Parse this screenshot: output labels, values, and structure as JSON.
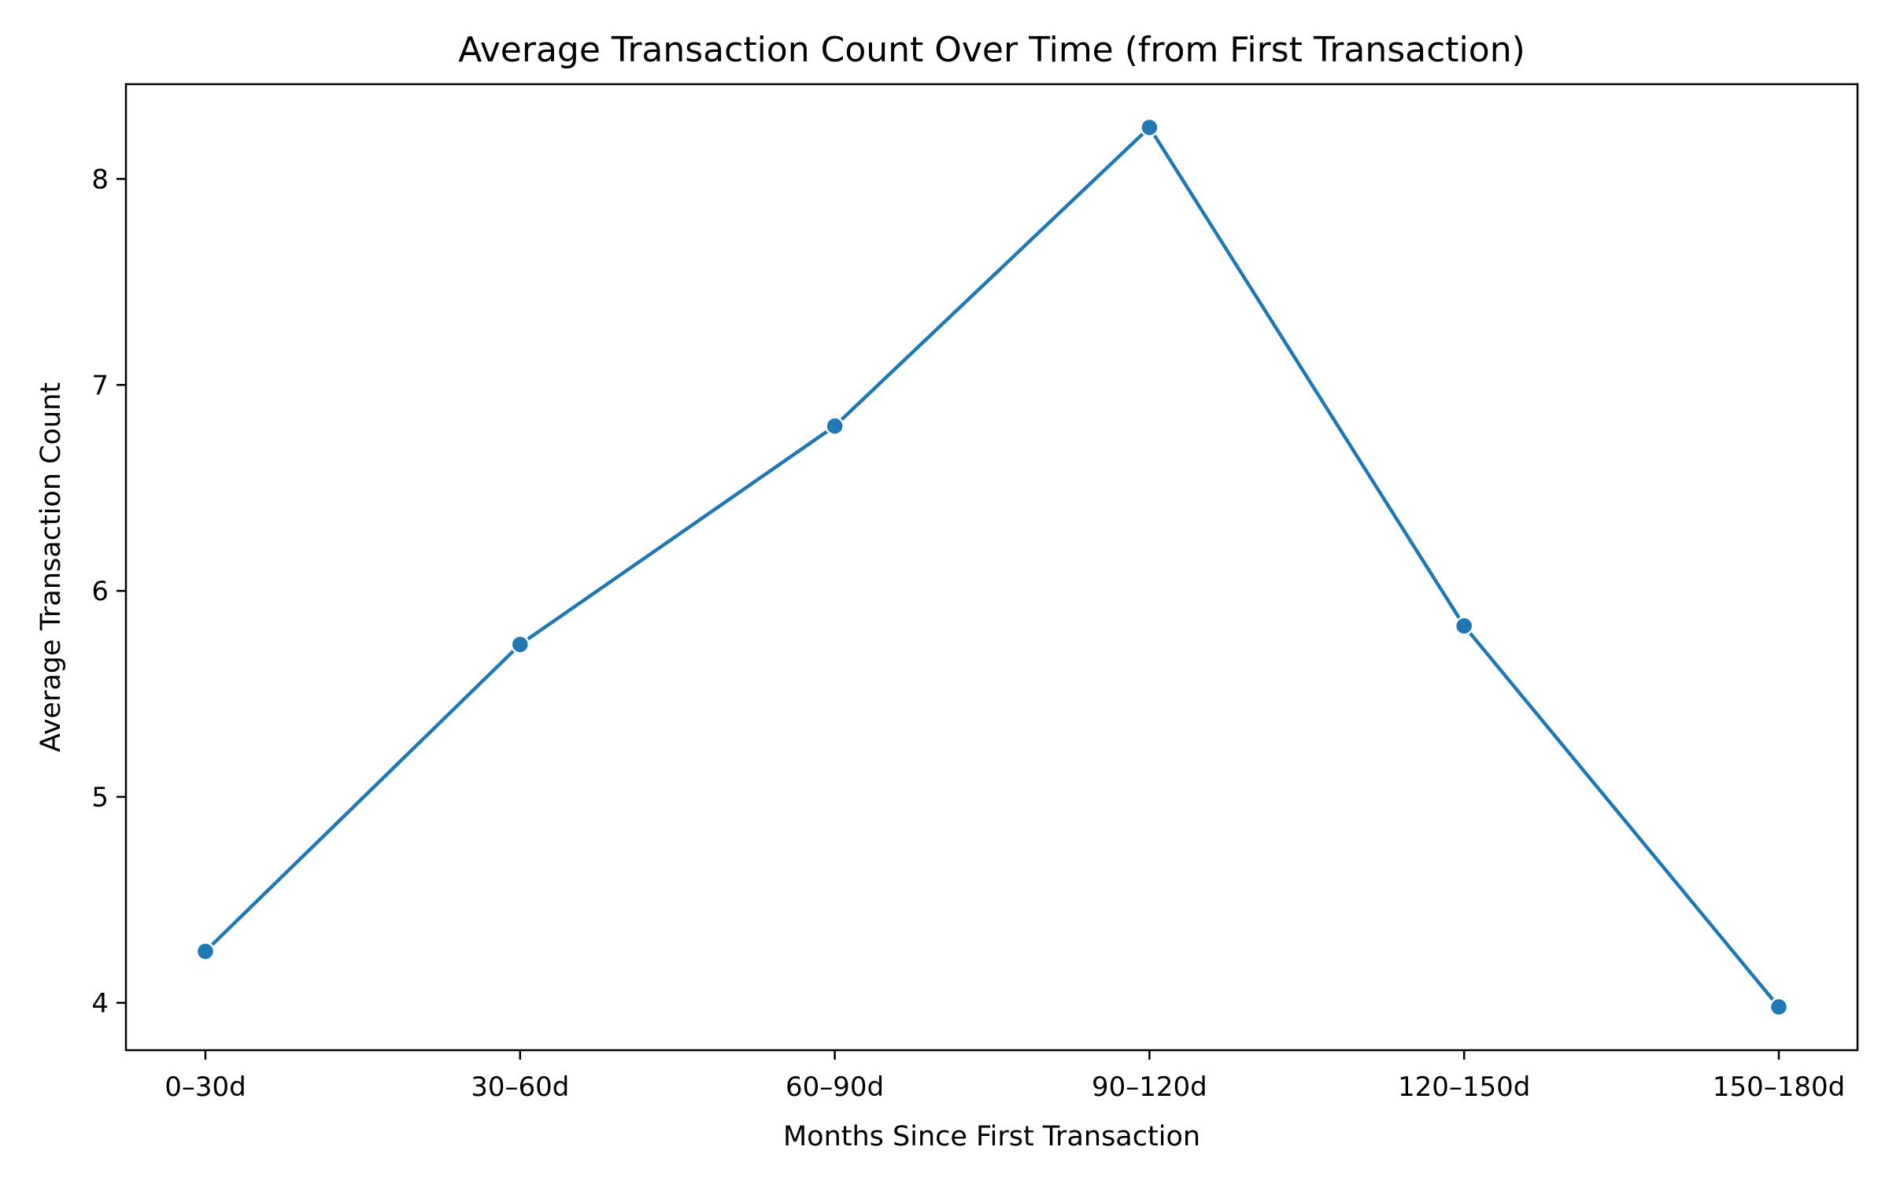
{
  "chart_data": {
    "type": "line",
    "title": "Average Transaction Count Over Time (from First Transaction)",
    "xlabel": "Months Since First Transaction",
    "ylabel": "Average Transaction Count",
    "categories": [
      "0–30d",
      "30–60d",
      "60–90d",
      "90–120d",
      "120–150d",
      "150–180d"
    ],
    "series": [
      {
        "values": [
          4.25,
          5.74,
          6.8,
          8.25,
          5.83,
          3.98
        ],
        "color": "#1f77b4"
      }
    ],
    "yticks": [
      4,
      5,
      6,
      7,
      8
    ],
    "ylim": [
      3.77,
      8.46
    ],
    "grid": false,
    "legend": "none",
    "marker": "circle"
  }
}
